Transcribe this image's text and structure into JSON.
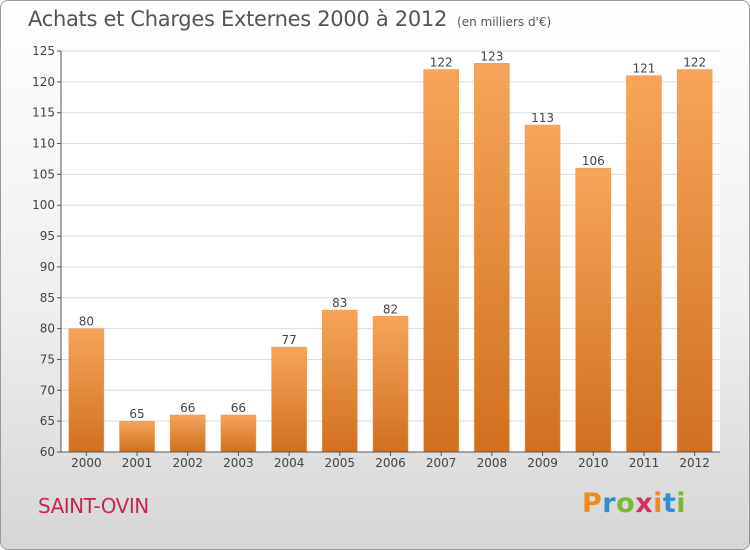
{
  "title": "Achats et Charges Externes 2000 à 2012",
  "unit": "(en milliers d'€)",
  "place": "SAINT-OVIN",
  "brand": {
    "letters": [
      "P",
      "r",
      "o",
      "x",
      "i",
      "t",
      "i"
    ],
    "colors": [
      "#f08a1c",
      "#2f8fd6",
      "#78b834",
      "#d1335c",
      "#f08a1c",
      "#2f8fd6",
      "#78b834"
    ]
  },
  "colors": {
    "bar_light": "#f7a55a",
    "bar_dark": "#d07020",
    "grid": "#dddddd",
    "axis": "#555555",
    "place": "#c4284f"
  },
  "chart_data": {
    "type": "bar",
    "categories": [
      "2000",
      "2001",
      "2002",
      "2003",
      "2004",
      "2005",
      "2006",
      "2007",
      "2008",
      "2009",
      "2010",
      "2011",
      "2012"
    ],
    "values": [
      80,
      65,
      66,
      66,
      77,
      83,
      82,
      122,
      123,
      113,
      106,
      121,
      122
    ],
    "ylim": [
      60,
      125
    ],
    "yticks": [
      60,
      65,
      70,
      75,
      80,
      85,
      90,
      95,
      100,
      105,
      110,
      115,
      120,
      125
    ],
    "grid": true,
    "legend": "none"
  }
}
